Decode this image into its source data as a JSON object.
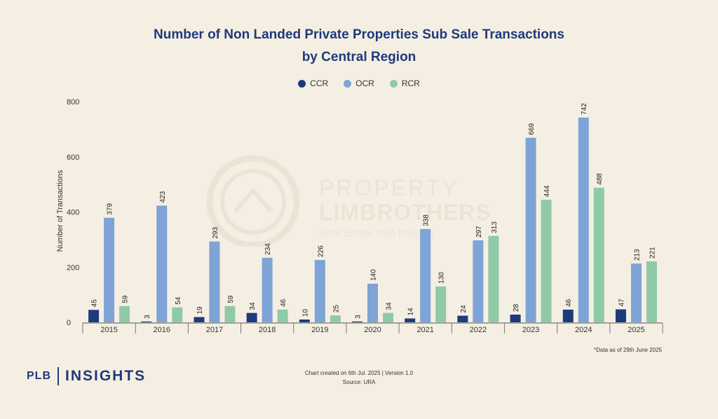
{
  "title_line1": "Number of Non Landed Private Properties Sub Sale Transactions",
  "title_line2": "by Central Region",
  "watermark": {
    "line1": "PROPERTY",
    "line2": "LIMBROTHERS",
    "line3": "Real Estate with Integrity"
  },
  "footnote": "*Data as of 29th June 2025",
  "credits": {
    "line1": "Chart created on 6th Jul. 2025 | Version 1.0",
    "line2": "Source: URA"
  },
  "logo": {
    "left": "PLB",
    "right": "INSIGHTS"
  },
  "chart_data": {
    "type": "bar",
    "title": "Number of Non Landed Private Properties Sub Sale Transactions by Central Region",
    "xlabel": "",
    "ylabel": "Number of Transactions",
    "ylim": [
      0,
      800
    ],
    "yticks": [
      0,
      200,
      400,
      600,
      800
    ],
    "grid": false,
    "legend_position": "top-center",
    "categories": [
      "2015",
      "2016",
      "2017",
      "2018",
      "2019",
      "2020",
      "2021",
      "2022",
      "2023",
      "2024",
      "2025"
    ],
    "series": [
      {
        "name": "CCR",
        "color": "#1e3a7b",
        "values": [
          45,
          3,
          19,
          34,
          10,
          3,
          14,
          24,
          28,
          46,
          47
        ]
      },
      {
        "name": "OCR",
        "color": "#7ea3d6",
        "values": [
          379,
          423,
          293,
          234,
          226,
          140,
          338,
          297,
          669,
          742,
          213
        ]
      },
      {
        "name": "RCR",
        "color": "#8fcaa6",
        "values": [
          59,
          54,
          59,
          46,
          25,
          34,
          130,
          313,
          444,
          488,
          221
        ]
      }
    ]
  }
}
